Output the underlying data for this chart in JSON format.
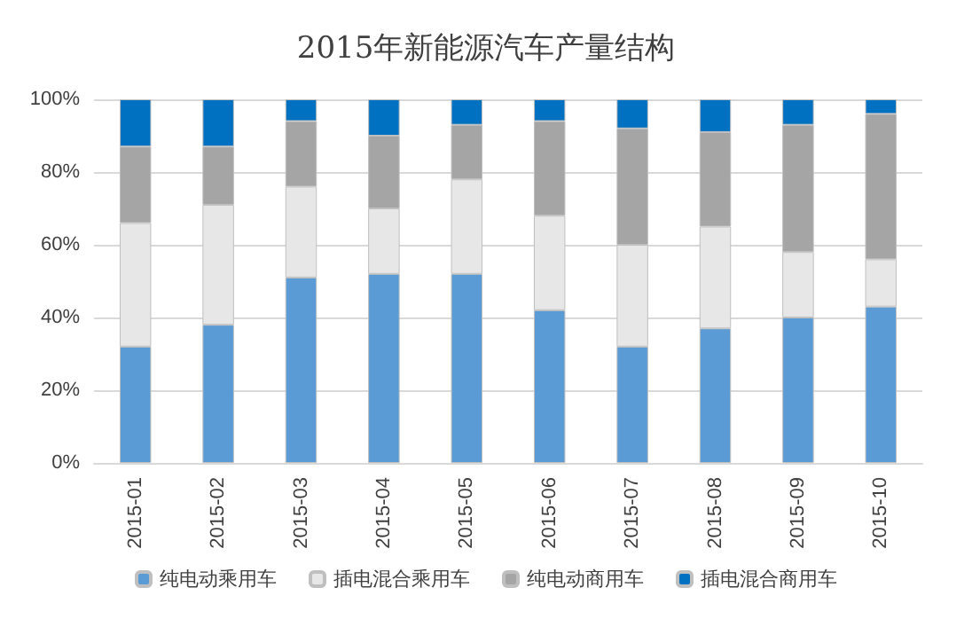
{
  "chart_data": {
    "type": "bar",
    "title": "2015年新能源汽车产量结构",
    "stacked": true,
    "categories": [
      "2015-01",
      "2015-02",
      "2015-03",
      "2015-04",
      "2015-05",
      "2015-06",
      "2015-07",
      "2015-08",
      "2015-09",
      "2015-10"
    ],
    "series": [
      {
        "name": "纯电动乘用车",
        "color": "#5b9bd5",
        "values": [
          32,
          38,
          51,
          52,
          52,
          42,
          32,
          37,
          40,
          43
        ]
      },
      {
        "name": "插电混合乘用车",
        "color": "#e7e7e7",
        "values": [
          34,
          33,
          25,
          18,
          26,
          26,
          28,
          28,
          18,
          13
        ]
      },
      {
        "name": "纯电动商用车",
        "color": "#a5a5a5",
        "values": [
          21,
          16,
          18,
          20,
          15,
          26,
          32,
          26,
          35,
          40
        ]
      },
      {
        "name": "插电混合商用车",
        "color": "#0070c0",
        "values": [
          13,
          13,
          6,
          10,
          7,
          6,
          8,
          9,
          7,
          4
        ]
      }
    ],
    "ylim": [
      0,
      100
    ],
    "yticks": [
      {
        "value": 0,
        "label": "0%"
      },
      {
        "value": 20,
        "label": "20%"
      },
      {
        "value": 40,
        "label": "40%"
      },
      {
        "value": 60,
        "label": "60%"
      },
      {
        "value": 80,
        "label": "80%"
      },
      {
        "value": 100,
        "label": "100%"
      }
    ],
    "grid": "y",
    "legend": "bottom"
  }
}
